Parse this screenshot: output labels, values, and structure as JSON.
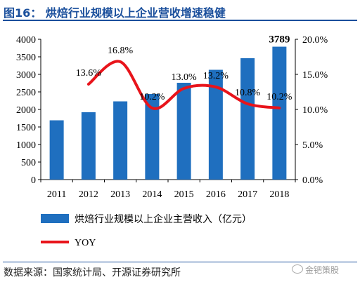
{
  "header": {
    "title": "图16：  烘焙行业规模以上企业营收增速稳健"
  },
  "footer": {
    "source": "数据来源：国家统计局、开源证券研究所",
    "watermark": "金钯策股"
  },
  "chart_data": {
    "type": "bar",
    "categories": [
      "2011",
      "2012",
      "2013",
      "2014",
      "2015",
      "2016",
      "2017",
      "2018"
    ],
    "series": [
      {
        "name": "烘焙行业规模以上企业主营收入（亿元）",
        "type": "bar",
        "axis": "left",
        "color": "#1f6fbf",
        "values": [
          1690,
          1920,
          2230,
          2440,
          2760,
          3130,
          3460,
          3789
        ],
        "labels": [
          "",
          "",
          "",
          "",
          "",
          "",
          "",
          "3789"
        ]
      },
      {
        "name": "YOY",
        "type": "line",
        "axis": "right",
        "color": "#e8141b",
        "values": [
          null,
          13.6,
          16.8,
          10.2,
          13.0,
          13.2,
          10.8,
          10.2
        ],
        "labels": [
          "",
          "13.6%",
          "16.8%",
          "10.2%",
          "13.0%",
          "13.2%",
          "10.8%",
          "10.2%"
        ]
      }
    ],
    "y_left": {
      "min": 0,
      "max": 4000,
      "ticks": [
        "0",
        "500",
        "1000",
        "1500",
        "2000",
        "2500",
        "3000",
        "3500",
        "4000"
      ]
    },
    "y_right": {
      "min": 0,
      "max": 20,
      "ticks": [
        "0.0%",
        "5.0%",
        "10.0%",
        "15.0%",
        "20.0%"
      ]
    },
    "legend_position": "bottom",
    "grid": false
  }
}
